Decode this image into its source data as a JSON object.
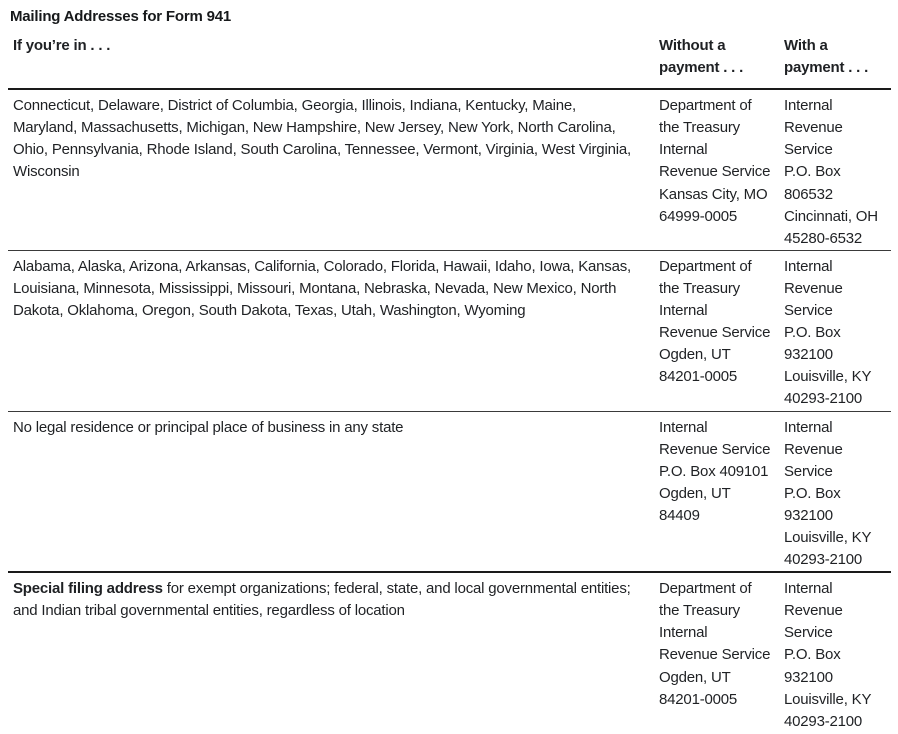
{
  "title": "Mailing Addresses for Form 941",
  "table": {
    "headers": {
      "region": "If you’re in . . .",
      "without": "Without a\npayment . . .",
      "with": "With a\npayment . . ."
    },
    "rows": [
      {
        "region_bold": "",
        "region": "Connecticut, Delaware, District of Columbia, Georgia, Illinois, Indiana, Kentucky, Maine,\nMaryland, Massachusetts, Michigan, New Hampshire, New Jersey, New York, North Carolina,\nOhio, Pennsylvania, Rhode Island, South Carolina, Tennessee, Vermont, Virginia, West Virginia,\nWisconsin",
        "without": "Department of\nthe Treasury\nInternal\nRevenue Service\nKansas City, MO\n64999-0005",
        "with": "Internal\nRevenue\nService\nP.O. Box\n806532\nCincinnati, OH\n45280-6532"
      },
      {
        "region_bold": "",
        "region": "Alabama, Alaska, Arizona, Arkansas, California, Colorado, Florida, Hawaii, Idaho, Iowa, Kansas,\nLouisiana, Minnesota, Mississippi, Missouri, Montana, Nebraska, Nevada, New Mexico, North\nDakota, Oklahoma, Oregon, South Dakota, Texas, Utah, Washington, Wyoming",
        "without": "Department of\nthe Treasury\nInternal\nRevenue Service\nOgden, UT\n84201-0005",
        "with": "Internal\nRevenue\nService\nP.O. Box\n932100\nLouisville, KY\n40293-2100"
      },
      {
        "region_bold": "",
        "region": "No legal residence or principal place of business in any state",
        "without": "Internal\nRevenue Service\nP.O. Box 409101\nOgden, UT\n84409",
        "with": "Internal\nRevenue\nService\nP.O. Box\n932100\nLouisville, KY\n40293-2100"
      },
      {
        "region_bold": "Special filing address",
        "region": " for exempt organizations; federal, state, and local governmental entities;\nand Indian tribal governmental entities, regardless of location",
        "without": "Department of\nthe Treasury\nInternal\nRevenue Service\nOgden, UT\n84201-0005",
        "with": "Internal\nRevenue\nService\nP.O. Box\n932100\nLouisville, KY\n40293-2100"
      }
    ]
  },
  "colors": {
    "text": "#1f2124",
    "rule_thick": "#1a1a1a",
    "rule_thin": "#3a3a3a"
  }
}
